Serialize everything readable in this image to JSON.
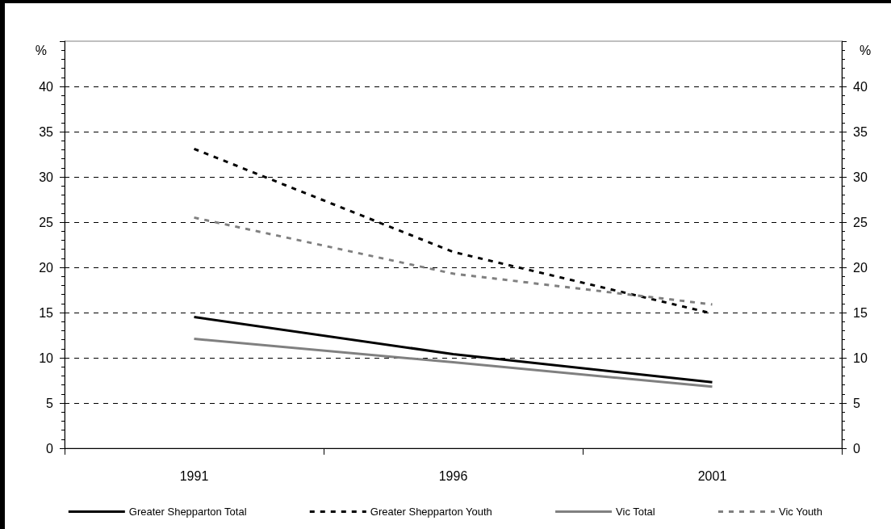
{
  "chart_data": {
    "type": "line",
    "ylabel": "%",
    "y2label": "%",
    "categories": [
      "1991",
      "1996",
      "2001"
    ],
    "series": [
      {
        "name": "Greater Shepparton Total",
        "color": "#000000",
        "line_style": "solid",
        "values": [
          14.5,
          10.4,
          7.3
        ]
      },
      {
        "name": "Greater Shepparton Youth",
        "color": "#000000",
        "line_style": "dashed",
        "values": [
          33.1,
          21.7,
          14.9
        ]
      },
      {
        "name": "Vic Total",
        "color": "#808080",
        "line_style": "solid",
        "values": [
          12.1,
          9.5,
          6.8
        ]
      },
      {
        "name": "Vic Youth",
        "color": "#808080",
        "line_style": "dashed",
        "values": [
          25.5,
          19.3,
          15.9
        ]
      }
    ],
    "ylim": [
      0,
      45
    ],
    "yticks": [
      0,
      5,
      10,
      15,
      20,
      25,
      30,
      35,
      40
    ],
    "y2lim": [
      0,
      45
    ],
    "y2ticks": [
      0,
      5,
      10,
      15,
      20,
      25,
      30,
      35,
      40
    ],
    "grid": "y",
    "legend": "bottom",
    "marker": "none"
  }
}
